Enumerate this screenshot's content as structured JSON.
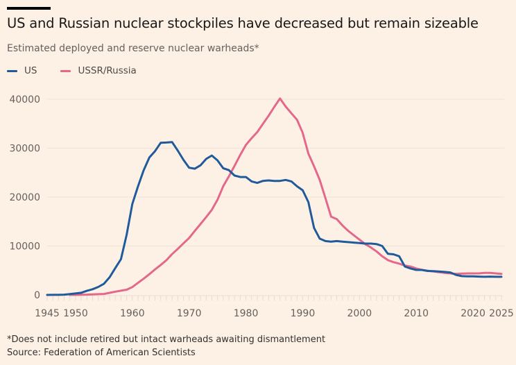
{
  "header": {
    "title": "US and Russian nuclear stockpiles have decreased but remain sizeable",
    "subtitle": "Estimated deployed and reserve nuclear warheads*"
  },
  "footer": {
    "note": "*Does not include retired but intact warheads awaiting dismantlement",
    "source": "Source: Federation of American Scientists"
  },
  "chart_data": {
    "type": "line",
    "title": "US and Russian nuclear stockpiles have decreased but remain sizeable",
    "subtitle": "Estimated deployed and reserve nuclear warheads*",
    "xlabel": "",
    "ylabel": "",
    "xlim": [
      1945,
      2025
    ],
    "ylim": [
      0,
      40000
    ],
    "grid": true,
    "legend_position": "top-left",
    "x_ticks": [
      1945,
      1950,
      1960,
      1970,
      1980,
      1990,
      2000,
      2010,
      2020,
      2025
    ],
    "x_tick_labels": [
      "1945",
      "1950",
      "1960",
      "1970",
      "1980",
      "1990",
      "2000",
      "2010",
      "2020",
      "2025"
    ],
    "y_ticks": [
      0,
      10000,
      20000,
      30000,
      40000
    ],
    "y_tick_labels": [
      "0",
      "10000",
      "20000",
      "30000",
      "40000"
    ],
    "series": [
      {
        "name": "US",
        "color": "#1f5a9a",
        "x": [
          1945,
          1946,
          1947,
          1948,
          1949,
          1950,
          1951,
          1952,
          1953,
          1954,
          1955,
          1956,
          1957,
          1958,
          1959,
          1960,
          1961,
          1962,
          1963,
          1964,
          1965,
          1966,
          1967,
          1968,
          1969,
          1970,
          1971,
          1972,
          1973,
          1974,
          1975,
          1976,
          1977,
          1978,
          1979,
          1980,
          1981,
          1982,
          1983,
          1984,
          1985,
          1986,
          1987,
          1988,
          1989,
          1990,
          1991,
          1992,
          1993,
          1994,
          1995,
          1996,
          1997,
          1998,
          1999,
          2000,
          2001,
          2002,
          2003,
          2004,
          2005,
          2006,
          2007,
          2008,
          2009,
          2010,
          2011,
          2012,
          2013,
          2014,
          2015,
          2016,
          2017,
          2018,
          2019,
          2020,
          2021,
          2022,
          2023,
          2024,
          2025
        ],
        "values": [
          2,
          9,
          13,
          50,
          170,
          300,
          440,
          840,
          1170,
          1630,
          2280,
          3620,
          5500,
          7300,
          12300,
          18600,
          22200,
          25500,
          28100,
          29400,
          31100,
          31150,
          31250,
          29500,
          27600,
          26000,
          25800,
          26500,
          27800,
          28500,
          27500,
          25900,
          25500,
          24400,
          24100,
          24100,
          23200,
          22900,
          23300,
          23400,
          23300,
          23300,
          23500,
          23200,
          22200,
          21400,
          19000,
          13700,
          11500,
          11000,
          10900,
          11000,
          10900,
          10800,
          10700,
          10600,
          10500,
          10500,
          10400,
          10000,
          8400,
          8300,
          7900,
          5800,
          5400,
          5100,
          5100,
          4900,
          4850,
          4800,
          4700,
          4600,
          4100,
          3850,
          3800,
          3800,
          3750,
          3700,
          3750,
          3708,
          3700
        ]
      },
      {
        "name": "USSR/Russia",
        "color": "#e3688a",
        "x": [
          1949,
          1950,
          1951,
          1952,
          1953,
          1954,
          1955,
          1956,
          1957,
          1958,
          1959,
          1960,
          1961,
          1962,
          1963,
          1964,
          1965,
          1966,
          1967,
          1968,
          1969,
          1970,
          1971,
          1972,
          1973,
          1974,
          1975,
          1976,
          1977,
          1978,
          1979,
          1980,
          1981,
          1982,
          1983,
          1984,
          1985,
          1986,
          1987,
          1988,
          1989,
          1990,
          1991,
          1992,
          1993,
          1994,
          1995,
          1996,
          1997,
          1998,
          1999,
          2000,
          2001,
          2002,
          2003,
          2004,
          2005,
          2006,
          2007,
          2008,
          2009,
          2010,
          2011,
          2012,
          2013,
          2014,
          2015,
          2016,
          2017,
          2018,
          2019,
          2020,
          2021,
          2022,
          2023,
          2024,
          2025
        ],
        "values": [
          1,
          5,
          25,
          50,
          120,
          150,
          200,
          426,
          660,
          869,
          1060,
          1605,
          2471,
          3322,
          4238,
          5221,
          6129,
          7089,
          8339,
          9399,
          10538,
          11643,
          13092,
          14478,
          15915,
          17385,
          19443,
          22217,
          24225,
          26401,
          28621,
          30665,
          32049,
          33283,
          34958,
          36621,
          38446,
          40159,
          38508,
          37129,
          35805,
          33150,
          28894,
          26300,
          23500,
          19800,
          16000,
          15500,
          14200,
          13100,
          12200,
          11300,
          10400,
          9700,
          8900,
          7900,
          7100,
          6700,
          6400,
          6000,
          5800,
          5400,
          5100,
          4950,
          4800,
          4650,
          4500,
          4400,
          4300,
          4350,
          4400,
          4400,
          4400,
          4500,
          4500,
          4400,
          4300
        ]
      }
    ]
  }
}
